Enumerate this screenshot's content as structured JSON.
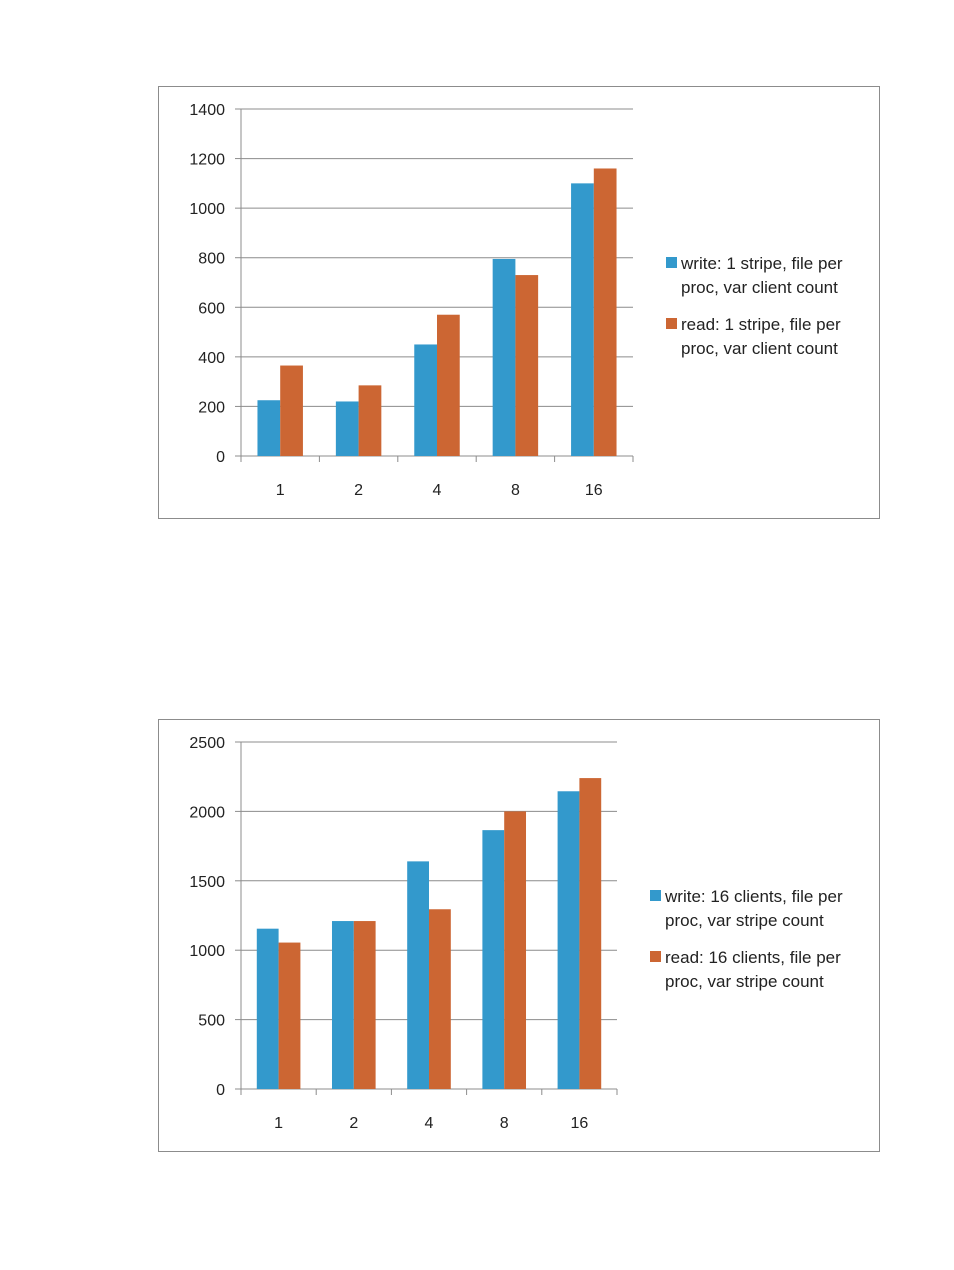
{
  "colors": {
    "write": "#3399cc",
    "read": "#cc6633",
    "grid": "#8c8c8c"
  },
  "chart_data": [
    {
      "type": "bar",
      "categories": [
        "1",
        "2",
        "4",
        "8",
        "16"
      ],
      "ylim": [
        0,
        1400
      ],
      "yticks": [
        0,
        200,
        400,
        600,
        800,
        1000,
        1200,
        1400
      ],
      "grid": true,
      "legend": "right",
      "title": "",
      "xlabel": "",
      "ylabel": "",
      "series": [
        {
          "name": "write: 1 stripe, file per proc, var client count",
          "legend_lines": [
            "write: 1 stripe, file per",
            "proc, var client count"
          ],
          "values": [
            225,
            220,
            450,
            795,
            1100
          ]
        },
        {
          "name": "read: 1 stripe, file per proc, var client count",
          "legend_lines": [
            "read: 1 stripe, file per",
            "proc, var client count"
          ],
          "values": [
            365,
            285,
            570,
            730,
            1160
          ]
        }
      ]
    },
    {
      "type": "bar",
      "categories": [
        "1",
        "2",
        "4",
        "8",
        "16"
      ],
      "ylim": [
        0,
        2500
      ],
      "yticks": [
        0,
        500,
        1000,
        1500,
        2000,
        2500
      ],
      "grid": true,
      "legend": "right",
      "title": "",
      "xlabel": "",
      "ylabel": "",
      "series": [
        {
          "name": "write: 16 clients, file per proc, var stripe count",
          "legend_lines": [
            "write: 16 clients, file per",
            "proc, var stripe count"
          ],
          "values": [
            1155,
            1210,
            1640,
            1865,
            2145
          ]
        },
        {
          "name": "read: 16 clients, file per proc, var stripe count",
          "legend_lines": [
            "read: 16 clients, file per",
            "proc, var stripe count"
          ],
          "values": [
            1055,
            1210,
            1295,
            2000,
            2240
          ]
        }
      ]
    }
  ]
}
